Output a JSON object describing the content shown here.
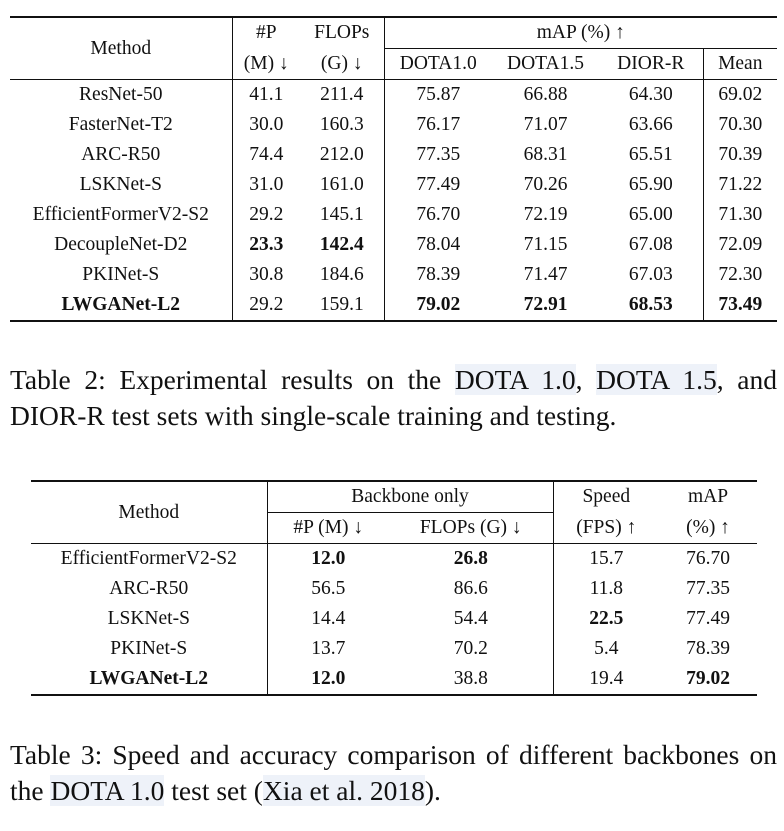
{
  "table2": {
    "header": {
      "method": "Method",
      "params_top": "#P",
      "params_bottom": "(M) ↓",
      "flops_top": "FLOPs",
      "flops_bottom": "(G) ↓",
      "map_group": "mAP (%) ↑",
      "cols": [
        "DOTA1.0",
        "DOTA1.5",
        "DIOR-R",
        "Mean"
      ]
    },
    "rows": [
      {
        "method": "ResNet-50",
        "p": "41.1",
        "flops": "211.4",
        "d10": "75.87",
        "d15": "66.88",
        "dior": "64.30",
        "mean": "69.02"
      },
      {
        "method": "FasterNet-T2",
        "p": "30.0",
        "flops": "160.3",
        "d10": "76.17",
        "d15": "71.07",
        "dior": "63.66",
        "mean": "70.30"
      },
      {
        "method": "ARC-R50",
        "p": "74.4",
        "flops": "212.0",
        "d10": "77.35",
        "d15": "68.31",
        "dior": "65.51",
        "mean": "70.39"
      },
      {
        "method": "LSKNet-S",
        "p": "31.0",
        "flops": "161.0",
        "d10": "77.49",
        "d15": "70.26",
        "dior": "65.90",
        "mean": "71.22"
      },
      {
        "method": "EfficientFormerV2-S2",
        "p": "29.2",
        "flops": "145.1",
        "d10": "76.70",
        "d15": "72.19",
        "dior": "65.00",
        "mean": "71.30"
      },
      {
        "method": "DecoupleNet-D2",
        "p": "23.3",
        "flops": "142.4",
        "d10": "78.04",
        "d15": "71.15",
        "dior": "67.08",
        "mean": "72.09"
      },
      {
        "method": "PKINet-S",
        "p": "30.8",
        "flops": "184.6",
        "d10": "78.39",
        "d15": "71.47",
        "dior": "67.03",
        "mean": "72.30"
      },
      {
        "method": "LWGANet-L2",
        "p": "29.2",
        "flops": "159.1",
        "d10": "79.02",
        "d15": "72.91",
        "dior": "68.53",
        "mean": "73.49"
      }
    ],
    "caption": {
      "prefix": "Table 2: Experimental results on the ",
      "ref1": "DOTA 1.0",
      "mid1": ", ",
      "ref2": "DOTA 1.5",
      "suffix": ", and DIOR-R test sets with single-scale training and testing."
    }
  },
  "table3": {
    "header": {
      "method": "Method",
      "backbone_group": "Backbone only",
      "params": "#P (M) ↓",
      "flops": "FLOPs (G) ↓",
      "speed_top": "Speed",
      "speed_bottom": "(FPS) ↑",
      "map_top": "mAP",
      "map_bottom": "(%) ↑"
    },
    "rows": [
      {
        "method": "EfficientFormerV2-S2",
        "p": "12.0",
        "flops": "26.8",
        "fps": "15.7",
        "map": "76.70"
      },
      {
        "method": "ARC-R50",
        "p": "56.5",
        "flops": "86.6",
        "fps": "11.8",
        "map": "77.35"
      },
      {
        "method": "LSKNet-S",
        "p": "14.4",
        "flops": "54.4",
        "fps": "22.5",
        "map": "77.49"
      },
      {
        "method": "PKINet-S",
        "p": "13.7",
        "flops": "70.2",
        "fps": "5.4",
        "map": "78.39"
      },
      {
        "method": "LWGANet-L2",
        "p": "12.0",
        "flops": "38.8",
        "fps": "19.4",
        "map": "79.02"
      }
    ],
    "caption": {
      "prefix": "Table 3: Speed and accuracy comparison of different backbones on the ",
      "ref1": "DOTA 1.0",
      "mid1": " test set (",
      "ref2": "Xia et al. 2018",
      "suffix": ")."
    }
  }
}
